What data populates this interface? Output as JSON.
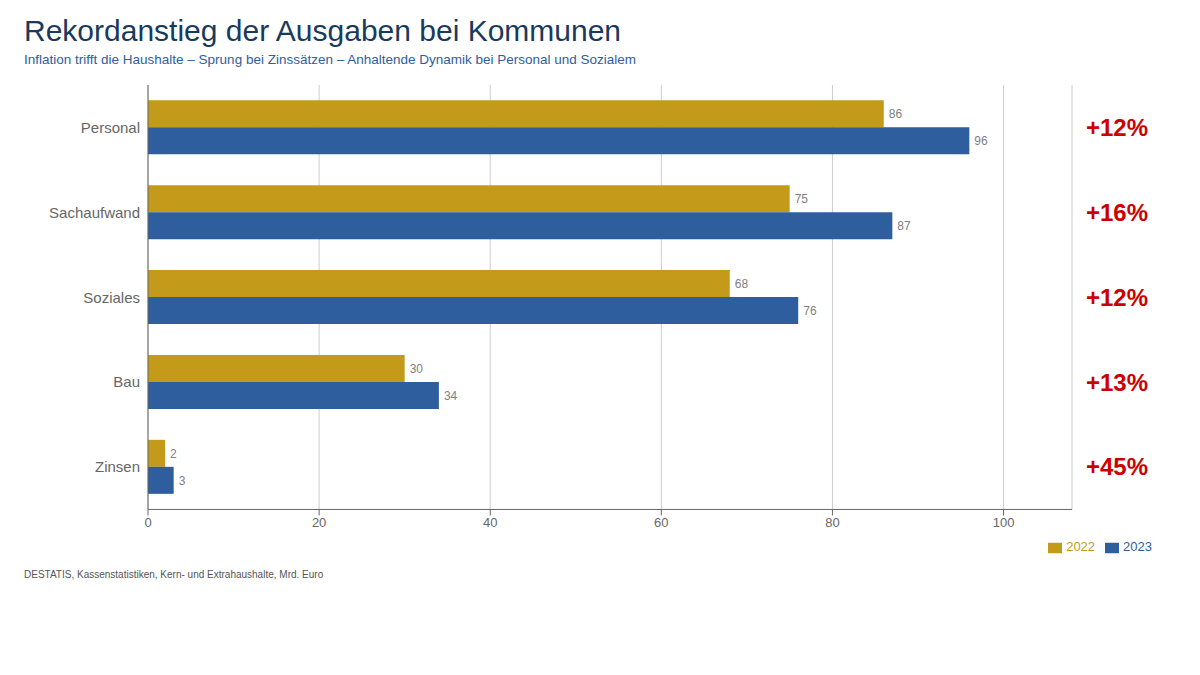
{
  "chart_data": {
    "type": "bar",
    "orientation": "horizontal",
    "title": "Rekordanstieg der Ausgaben bei Kommunen",
    "subtitle": "Inflation trifft die Haushalte – Sprung bei Zinssätzen – Anhaltende Dynamik bei Personal und Sozialem",
    "footer": "DESTATIS, Kassenstatistiken, Kern- und Extrahaushalte, Mrd. Euro",
    "categories": [
      "Personal",
      "Sachaufwand",
      "Soziales",
      "Bau",
      "Zinsen"
    ],
    "series": [
      {
        "name": "2022",
        "color": "#C49A1A",
        "values": [
          86,
          75,
          68,
          30,
          2
        ]
      },
      {
        "name": "2023",
        "color": "#2E5E9E",
        "values": [
          96,
          87,
          76,
          34,
          3
        ]
      }
    ],
    "annotations": [
      {
        "category": "Personal",
        "text": "+12%",
        "color": "#CC0000"
      },
      {
        "category": "Sachaufwand",
        "text": "+16%",
        "color": "#CC0000"
      },
      {
        "category": "Soziales",
        "text": "+12%",
        "color": "#CC0000"
      },
      {
        "category": "Bau",
        "text": "+13%",
        "color": "#CC0000"
      },
      {
        "category": "Zinsen",
        "text": "+45%",
        "color": "#CC0000"
      }
    ],
    "xlim": [
      0,
      108
    ],
    "xticks": [
      0,
      20,
      40,
      60,
      80,
      100
    ],
    "grid": true,
    "data_labels": true,
    "legend": "right"
  }
}
